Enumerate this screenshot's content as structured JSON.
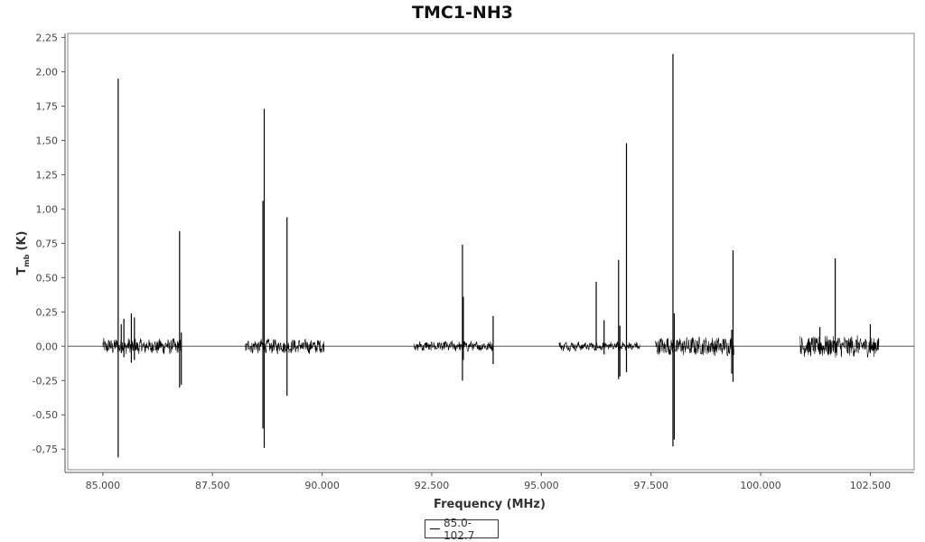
{
  "chart_data": {
    "type": "line",
    "title": "TMC1-NH3",
    "xlabel": "Frequency (MHz)",
    "ylabel_main": "T",
    "ylabel_sub": "mb",
    "ylabel_unit": "(K)",
    "xlim": [
      84200,
      103500
    ],
    "ylim": [
      -0.9,
      2.28
    ],
    "x_ticks": [
      85000,
      87500,
      90000,
      92500,
      95000,
      97500,
      100000,
      102500
    ],
    "x_tick_labels": [
      "85.000",
      "87.500",
      "90.000",
      "92.500",
      "95.000",
      "97.500",
      "100.000",
      "102.500"
    ],
    "y_ticks": [
      2.25,
      2.0,
      1.75,
      1.5,
      1.25,
      1.0,
      0.75,
      0.5,
      0.25,
      0.0,
      -0.25,
      -0.5,
      -0.75
    ],
    "y_tick_labels": [
      "2,25",
      "2,00",
      "1,75",
      "1,50",
      "1,25",
      "1,00",
      "0,75",
      "0,50",
      "0,25",
      "0,00",
      "-0,25",
      "-0,50",
      "-0,75"
    ],
    "legend_position": "bottom-center",
    "series": [
      {
        "name": "85.0-102.7",
        "color": "#000000",
        "segments": [
          {
            "x_start": 85000,
            "x_end": 86800,
            "noise": 0.05
          },
          {
            "x_start": 88250,
            "x_end": 90050,
            "noise": 0.045
          },
          {
            "x_start": 92100,
            "x_end": 93900,
            "noise": 0.03
          },
          {
            "x_start": 95400,
            "x_end": 97250,
            "noise": 0.025
          },
          {
            "x_start": 97600,
            "x_end": 99400,
            "noise": 0.06
          },
          {
            "x_start": 100900,
            "x_end": 102700,
            "noise": 0.07
          }
        ],
        "peaks": [
          {
            "x": 85350,
            "y_max": 1.95,
            "y_min": -0.81
          },
          {
            "x": 85420,
            "y_max": 0.16,
            "y_min": -0.05
          },
          {
            "x": 85480,
            "y_max": 0.2,
            "y_min": -0.08
          },
          {
            "x": 85650,
            "y_max": 0.24,
            "y_min": -0.12
          },
          {
            "x": 85720,
            "y_max": 0.21,
            "y_min": -0.1
          },
          {
            "x": 86750,
            "y_max": 0.84,
            "y_min": -0.3
          },
          {
            "x": 86790,
            "y_max": 0.1,
            "y_min": -0.28
          },
          {
            "x": 88650,
            "y_max": 1.06,
            "y_min": -0.6
          },
          {
            "x": 88680,
            "y_max": 1.73,
            "y_min": -0.74
          },
          {
            "x": 89200,
            "y_max": 0.94,
            "y_min": -0.36
          },
          {
            "x": 93200,
            "y_max": 0.74,
            "y_min": -0.25
          },
          {
            "x": 93220,
            "y_max": 0.36,
            "y_min": -0.1
          },
          {
            "x": 93900,
            "y_max": 0.22,
            "y_min": -0.13
          },
          {
            "x": 96250,
            "y_max": 0.47,
            "y_min": -0.03
          },
          {
            "x": 96430,
            "y_max": 0.19,
            "y_min": -0.06
          },
          {
            "x": 96760,
            "y_max": 0.63,
            "y_min": -0.24
          },
          {
            "x": 96790,
            "y_max": 0.15,
            "y_min": -0.22
          },
          {
            "x": 96940,
            "y_max": 1.48,
            "y_min": -0.19
          },
          {
            "x": 98000,
            "y_max": 2.13,
            "y_min": -0.73
          },
          {
            "x": 98030,
            "y_max": 0.24,
            "y_min": -0.68
          },
          {
            "x": 99370,
            "y_max": 0.7,
            "y_min": -0.26
          },
          {
            "x": 99340,
            "y_max": 0.12,
            "y_min": -0.2
          },
          {
            "x": 101700,
            "y_max": 0.64,
            "y_min": -0.05
          },
          {
            "x": 101350,
            "y_max": 0.14,
            "y_min": -0.06
          },
          {
            "x": 102500,
            "y_max": 0.16,
            "y_min": -0.05
          }
        ]
      }
    ]
  }
}
